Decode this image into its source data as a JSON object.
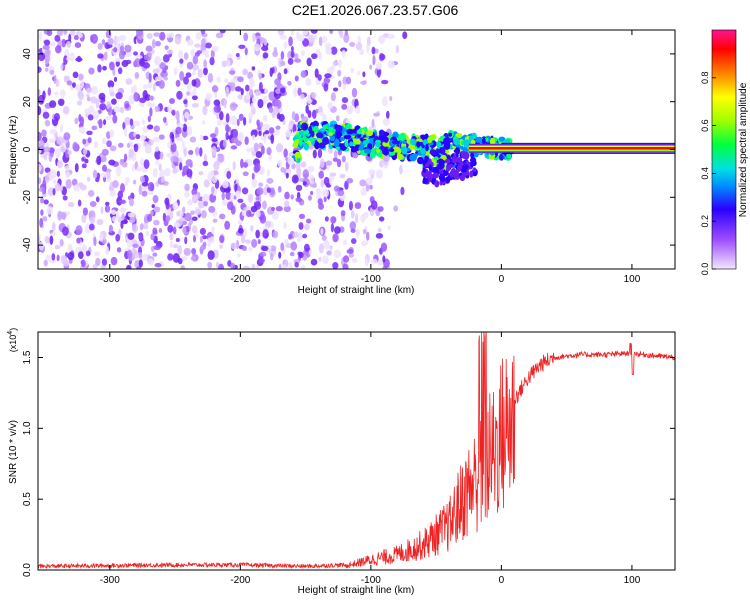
{
  "title": "C2E1.2026.067.23.57.G06",
  "chart_data": [
    {
      "type": "heatmap",
      "xlabel": "Height of straight line (km)",
      "ylabel": "Frequency (Hz)",
      "xlim": [
        -355,
        133
      ],
      "ylim": [
        -50,
        50
      ],
      "xticks": [
        -300,
        -200,
        -100,
        0,
        100
      ],
      "yticks": [
        -40,
        -20,
        0,
        20,
        40
      ],
      "colorbar": {
        "label": "Normalized spectral amplitude",
        "range": [
          0,
          1
        ],
        "ticks": [
          0.0,
          0.2,
          0.4,
          0.6,
          0.8
        ]
      },
      "features": {
        "noise_region_x": [
          -355,
          -130
        ],
        "signal_track": [
          {
            "x": -155,
            "f": 6
          },
          {
            "x": -130,
            "f": 6
          },
          {
            "x": -110,
            "f": 4
          },
          {
            "x": -90,
            "f": 2
          },
          {
            "x": -70,
            "f": 1
          },
          {
            "x": -50,
            "f": -2
          },
          {
            "x": -35,
            "f": 0
          },
          {
            "x": -25,
            "f": 2
          },
          {
            "x": -10,
            "f": 1
          },
          {
            "x": 0,
            "f": 0.5
          },
          {
            "x": 133,
            "f": 0.5
          }
        ],
        "line_start_x": -25
      }
    },
    {
      "type": "line",
      "xlabel": "Height of straight line (km)",
      "ylabel": "SNR (10 * v/v)",
      "yscale_label": "(x10",
      "yscale_exp": "4",
      "xlim": [
        -355,
        133
      ],
      "ylim": [
        0,
        1.68
      ],
      "xticks": [
        -300,
        -200,
        -100,
        0,
        100
      ],
      "yticks": [
        0.0,
        0.5,
        1.0,
        1.5
      ],
      "series_color": "#ee2222",
      "envelope": {
        "x": [
          -355,
          -250,
          -200,
          -150,
          -120,
          -100,
          -80,
          -60,
          -40,
          -30,
          -20,
          -10,
          0,
          10,
          20,
          30,
          40,
          60,
          80,
          100,
          120,
          133
        ],
        "y": [
          0.02,
          0.03,
          0.03,
          0.02,
          0.03,
          0.08,
          0.12,
          0.2,
          0.35,
          0.55,
          0.7,
          0.85,
          1.05,
          1.2,
          1.35,
          1.45,
          1.5,
          1.52,
          1.52,
          1.53,
          1.51,
          1.5
        ]
      }
    }
  ]
}
